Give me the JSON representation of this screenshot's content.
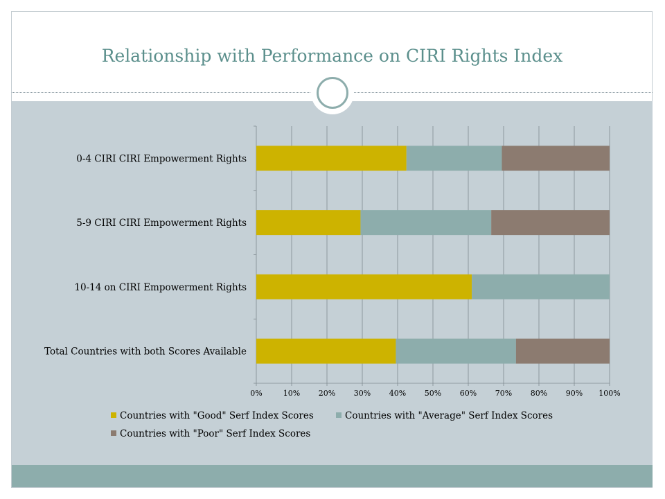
{
  "slide": {
    "title": "Relationship with Performance on CIRI Rights Index"
  },
  "chart_data": {
    "type": "bar",
    "orientation": "horizontal",
    "stacked": "percent",
    "title": "",
    "xlabel": "",
    "ylabel": "",
    "xlim": [
      0,
      100
    ],
    "x_ticks": [
      "0%",
      "10%",
      "20%",
      "30%",
      "40%",
      "50%",
      "60%",
      "70%",
      "80%",
      "90%",
      "100%"
    ],
    "categories": [
      "0-4 CIRI CIRI Empowerment Rights",
      "5-9 CIRI CIRI Empowerment Rights",
      "10-14 on CIRI Empowerment Rights",
      "Total Countries with both Scores Available"
    ],
    "series": [
      {
        "name": "Countries with  \"Good\" Serf Index Scores",
        "color": "#cdb300",
        "values": [
          42.5,
          29.5,
          61,
          39.5
        ]
      },
      {
        "name": "Countries with  \"Average\" Serf Index Scores",
        "color": "#8dadac",
        "values": [
          27,
          37,
          39,
          34
        ]
      },
      {
        "name": "Countries with \"Poor\" Serf Index Scores",
        "color": "#8c7b70",
        "values": [
          30.5,
          33.5,
          0,
          26.5
        ]
      }
    ],
    "grid": true,
    "legend_position": "bottom"
  }
}
